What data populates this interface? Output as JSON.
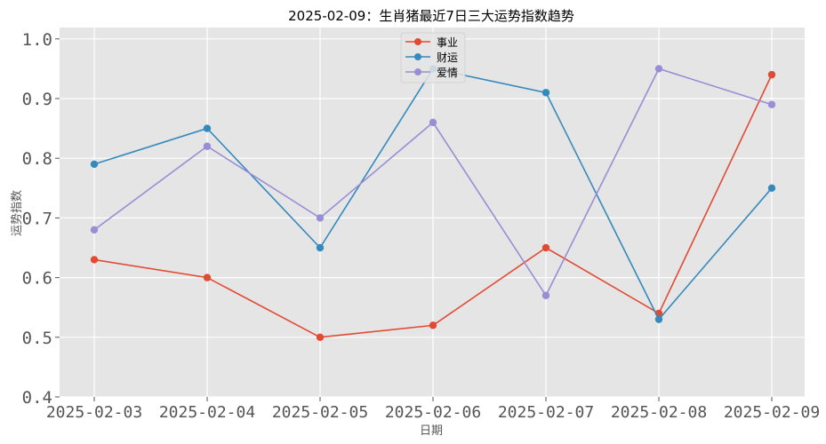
{
  "chart_data": {
    "type": "line",
    "title": "2025-02-09：生肖猪最近7日三大运势指数趋势",
    "xlabel": "日期",
    "ylabel": "运势指数",
    "categories": [
      "2025-02-03",
      "2025-02-04",
      "2025-02-05",
      "2025-02-06",
      "2025-02-07",
      "2025-02-08",
      "2025-02-09"
    ],
    "series": [
      {
        "name": "事业",
        "color": "#E24A33",
        "values": [
          0.63,
          0.6,
          0.5,
          0.52,
          0.65,
          0.54,
          0.94
        ]
      },
      {
        "name": "财运",
        "color": "#348ABD",
        "values": [
          0.79,
          0.85,
          0.65,
          0.95,
          0.91,
          0.53,
          0.75
        ]
      },
      {
        "name": "爱情",
        "color": "#988ED5",
        "values": [
          0.68,
          0.82,
          0.7,
          0.86,
          0.57,
          0.95,
          0.89
        ]
      }
    ],
    "ylim": [
      0.4,
      1.02
    ],
    "yticks": [
      "0.4",
      "0.5",
      "0.6",
      "0.7",
      "0.8",
      "0.9",
      "1.0"
    ],
    "grid": true,
    "legend_position": "top-center",
    "background_color": "#E5E5E5"
  }
}
